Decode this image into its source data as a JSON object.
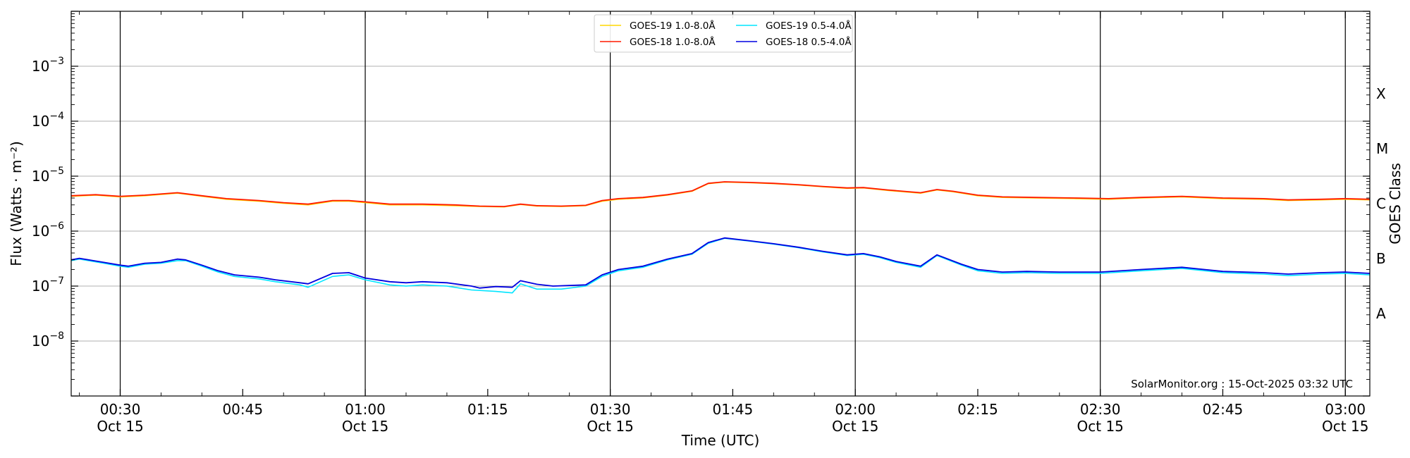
{
  "chart_data": {
    "type": "line",
    "title": "",
    "xlabel": "Time (UTC)",
    "ylabel": "Flux (Watts · m⁻²)",
    "right_ylabel": "GOES Class",
    "yscale": "log",
    "ylim": [
      1e-09,
      0.01
    ],
    "xlim_minutes": [
      "00:24",
      "03:03"
    ],
    "grid": "horizontal",
    "y_ticks": [
      {
        "base": "10",
        "exp": "−8",
        "value": 1e-08
      },
      {
        "base": "10",
        "exp": "−7",
        "value": 1e-07
      },
      {
        "base": "10",
        "exp": "−6",
        "value": 1e-06
      },
      {
        "base": "10",
        "exp": "−5",
        "value": 1e-05
      },
      {
        "base": "10",
        "exp": "−4",
        "value": 0.0001
      },
      {
        "base": "10",
        "exp": "−3",
        "value": 0.001
      }
    ],
    "x_ticks": [
      {
        "time": "00:30",
        "label": "00:30",
        "sub": "Oct 15"
      },
      {
        "time": "00:45",
        "label": "00:45",
        "sub": ""
      },
      {
        "time": "01:00",
        "label": "01:00",
        "sub": "Oct 15"
      },
      {
        "time": "01:15",
        "label": "01:15",
        "sub": ""
      },
      {
        "time": "01:30",
        "label": "01:30",
        "sub": "Oct 15"
      },
      {
        "time": "01:45",
        "label": "01:45",
        "sub": ""
      },
      {
        "time": "02:00",
        "label": "02:00",
        "sub": "Oct 15"
      },
      {
        "time": "02:15",
        "label": "02:15",
        "sub": ""
      },
      {
        "time": "02:30",
        "label": "02:30",
        "sub": "Oct 15"
      },
      {
        "time": "02:45",
        "label": "02:45",
        "sub": ""
      },
      {
        "time": "03:00",
        "label": "03:00",
        "sub": "Oct 15"
      }
    ],
    "vlines": [
      "00:30",
      "01:00",
      "01:30",
      "02:00",
      "02:30",
      "03:00"
    ],
    "goes_classes": [
      {
        "label": "A",
        "value": 3.16e-08
      },
      {
        "label": "B",
        "value": 3.16e-07
      },
      {
        "label": "C",
        "value": 3.16e-06
      },
      {
        "label": "M",
        "value": 3.16e-05
      },
      {
        "label": "X",
        "value": 0.000316
      }
    ],
    "legend_placement": "top-center",
    "credit": "SolarMonitor.org : 15-Oct-2025 03:32 UTC",
    "series": [
      {
        "name": "GOES-19 1.0-8.0Å",
        "color": "#ffd700",
        "points": [
          [
            "00:24",
            4.3e-06
          ],
          [
            "00:27",
            4.5e-06
          ],
          [
            "00:30",
            4.2e-06
          ],
          [
            "00:33",
            4.4e-06
          ],
          [
            "00:37",
            4.9e-06
          ],
          [
            "00:40",
            4.3e-06
          ],
          [
            "00:43",
            3.8e-06
          ],
          [
            "00:47",
            3.5e-06
          ],
          [
            "00:50",
            3.2e-06
          ],
          [
            "00:53",
            3e-06
          ],
          [
            "00:56",
            3.5e-06
          ],
          [
            "00:58",
            3.5e-06
          ],
          [
            "01:00",
            3.3e-06
          ],
          [
            "01:03",
            3e-06
          ],
          [
            "01:07",
            3e-06
          ],
          [
            "01:11",
            2.9e-06
          ],
          [
            "01:14",
            2.8e-06
          ],
          [
            "01:17",
            2.75e-06
          ],
          [
            "01:19",
            3.05e-06
          ],
          [
            "01:21",
            2.85e-06
          ],
          [
            "01:24",
            2.8e-06
          ],
          [
            "01:27",
            2.9e-06
          ],
          [
            "01:29",
            3.5e-06
          ],
          [
            "01:31",
            3.8e-06
          ],
          [
            "01:34",
            4e-06
          ],
          [
            "01:37",
            4.5e-06
          ],
          [
            "01:40",
            5.3e-06
          ],
          [
            "01:42",
            7.3e-06
          ],
          [
            "01:44",
            7.8e-06
          ],
          [
            "01:47",
            7.6e-06
          ],
          [
            "01:50",
            7.3e-06
          ],
          [
            "01:53",
            6.9e-06
          ],
          [
            "01:56",
            6.4e-06
          ],
          [
            "01:59",
            6e-06
          ],
          [
            "02:01",
            6.1e-06
          ],
          [
            "02:04",
            5.5e-06
          ],
          [
            "02:08",
            4.9e-06
          ],
          [
            "02:10",
            5.6e-06
          ],
          [
            "02:12",
            5.2e-06
          ],
          [
            "02:15",
            4.4e-06
          ],
          [
            "02:18",
            4.1e-06
          ],
          [
            "02:22",
            4e-06
          ],
          [
            "02:27",
            3.9e-06
          ],
          [
            "02:31",
            3.8e-06
          ],
          [
            "02:35",
            4e-06
          ],
          [
            "02:40",
            4.2e-06
          ],
          [
            "02:45",
            3.9e-06
          ],
          [
            "02:50",
            3.8e-06
          ],
          [
            "02:53",
            3.6e-06
          ],
          [
            "02:57",
            3.7e-06
          ],
          [
            "03:00",
            3.8e-06
          ],
          [
            "03:03",
            3.7e-06
          ]
        ]
      },
      {
        "name": "GOES-18 1.0-8.0Å",
        "color": "#ff1a00",
        "points": [
          [
            "00:24",
            4.4e-06
          ],
          [
            "00:27",
            4.6e-06
          ],
          [
            "00:30",
            4.3e-06
          ],
          [
            "00:33",
            4.5e-06
          ],
          [
            "00:37",
            5e-06
          ],
          [
            "00:40",
            4.4e-06
          ],
          [
            "00:43",
            3.9e-06
          ],
          [
            "00:47",
            3.6e-06
          ],
          [
            "00:50",
            3.3e-06
          ],
          [
            "00:53",
            3.1e-06
          ],
          [
            "00:56",
            3.6e-06
          ],
          [
            "00:58",
            3.6e-06
          ],
          [
            "01:00",
            3.4e-06
          ],
          [
            "01:03",
            3.1e-06
          ],
          [
            "01:07",
            3.1e-06
          ],
          [
            "01:11",
            3e-06
          ],
          [
            "01:14",
            2.85e-06
          ],
          [
            "01:17",
            2.8e-06
          ],
          [
            "01:19",
            3.1e-06
          ],
          [
            "01:21",
            2.9e-06
          ],
          [
            "01:24",
            2.85e-06
          ],
          [
            "01:27",
            2.95e-06
          ],
          [
            "01:29",
            3.6e-06
          ],
          [
            "01:31",
            3.9e-06
          ],
          [
            "01:34",
            4.1e-06
          ],
          [
            "01:37",
            4.6e-06
          ],
          [
            "01:40",
            5.4e-06
          ],
          [
            "01:42",
            7.4e-06
          ],
          [
            "01:44",
            7.9e-06
          ],
          [
            "01:47",
            7.7e-06
          ],
          [
            "01:50",
            7.4e-06
          ],
          [
            "01:53",
            7e-06
          ],
          [
            "01:56",
            6.5e-06
          ],
          [
            "01:59",
            6.1e-06
          ],
          [
            "02:01",
            6.2e-06
          ],
          [
            "02:04",
            5.6e-06
          ],
          [
            "02:08",
            5e-06
          ],
          [
            "02:10",
            5.7e-06
          ],
          [
            "02:12",
            5.3e-06
          ],
          [
            "02:15",
            4.5e-06
          ],
          [
            "02:18",
            4.2e-06
          ],
          [
            "02:22",
            4.1e-06
          ],
          [
            "02:27",
            4e-06
          ],
          [
            "02:31",
            3.9e-06
          ],
          [
            "02:35",
            4.1e-06
          ],
          [
            "02:40",
            4.3e-06
          ],
          [
            "02:45",
            4e-06
          ],
          [
            "02:50",
            3.9e-06
          ],
          [
            "02:53",
            3.7e-06
          ],
          [
            "02:57",
            3.8e-06
          ],
          [
            "03:00",
            3.9e-06
          ],
          [
            "03:03",
            3.8e-06
          ]
        ]
      },
      {
        "name": "GOES-19 0.5-4.0Å",
        "color": "#00e5ff",
        "points": [
          [
            "00:24",
            2.9e-07
          ],
          [
            "00:25",
            3.1e-07
          ],
          [
            "00:28",
            2.6e-07
          ],
          [
            "00:30",
            2.3e-07
          ],
          [
            "00:31",
            2.2e-07
          ],
          [
            "00:33",
            2.5e-07
          ],
          [
            "00:35",
            2.6e-07
          ],
          [
            "00:37",
            2.9e-07
          ],
          [
            "00:38",
            2.9e-07
          ],
          [
            "00:40",
            2.3e-07
          ],
          [
            "00:42",
            1.8e-07
          ],
          [
            "00:44",
            1.5e-07
          ],
          [
            "00:47",
            1.35e-07
          ],
          [
            "00:49",
            1.2e-07
          ],
          [
            "00:52",
            1.05e-07
          ],
          [
            "00:53",
            9.5e-08
          ],
          [
            "00:56",
            1.5e-07
          ],
          [
            "00:58",
            1.6e-07
          ],
          [
            "01:00",
            1.3e-07
          ],
          [
            "01:03",
            1.05e-07
          ],
          [
            "01:05",
            1e-07
          ],
          [
            "01:07",
            1.05e-07
          ],
          [
            "01:10",
            1e-07
          ],
          [
            "01:13",
            8.5e-08
          ],
          [
            "01:16",
            8e-08
          ],
          [
            "01:18",
            7.5e-08
          ],
          [
            "01:19",
            1.1e-07
          ],
          [
            "01:21",
            8.8e-08
          ],
          [
            "01:24",
            8.8e-08
          ],
          [
            "01:27",
            1e-07
          ],
          [
            "01:29",
            1.5e-07
          ],
          [
            "01:31",
            1.9e-07
          ],
          [
            "01:34",
            2.2e-07
          ],
          [
            "01:37",
            3e-07
          ],
          [
            "01:40",
            3.8e-07
          ],
          [
            "01:42",
            6e-07
          ],
          [
            "01:44",
            7.4e-07
          ],
          [
            "01:47",
            6.6e-07
          ],
          [
            "01:50",
            5.8e-07
          ],
          [
            "01:53",
            5e-07
          ],
          [
            "01:56",
            4.2e-07
          ],
          [
            "01:59",
            3.6e-07
          ],
          [
            "02:01",
            3.8e-07
          ],
          [
            "02:03",
            3.3e-07
          ],
          [
            "02:05",
            2.7e-07
          ],
          [
            "02:08",
            2.2e-07
          ],
          [
            "02:10",
            3.6e-07
          ],
          [
            "02:13",
            2.4e-07
          ],
          [
            "02:15",
            1.9e-07
          ],
          [
            "02:18",
            1.7e-07
          ],
          [
            "02:21",
            1.75e-07
          ],
          [
            "02:25",
            1.7e-07
          ],
          [
            "02:30",
            1.7e-07
          ],
          [
            "02:35",
            1.9e-07
          ],
          [
            "02:40",
            2.1e-07
          ],
          [
            "02:45",
            1.75e-07
          ],
          [
            "02:50",
            1.65e-07
          ],
          [
            "02:53",
            1.55e-07
          ],
          [
            "02:57",
            1.65e-07
          ],
          [
            "03:00",
            1.7e-07
          ],
          [
            "03:03",
            1.6e-07
          ]
        ]
      },
      {
        "name": "GOES-18 0.5-4.0Å",
        "color": "#0000e0",
        "points": [
          [
            "00:24",
            3e-07
          ],
          [
            "00:25",
            3.2e-07
          ],
          [
            "00:28",
            2.7e-07
          ],
          [
            "00:30",
            2.4e-07
          ],
          [
            "00:31",
            2.3e-07
          ],
          [
            "00:33",
            2.6e-07
          ],
          [
            "00:35",
            2.7e-07
          ],
          [
            "00:37",
            3.1e-07
          ],
          [
            "00:38",
            3e-07
          ],
          [
            "00:40",
            2.4e-07
          ],
          [
            "00:42",
            1.9e-07
          ],
          [
            "00:44",
            1.6e-07
          ],
          [
            "00:47",
            1.45e-07
          ],
          [
            "00:49",
            1.3e-07
          ],
          [
            "00:52",
            1.15e-07
          ],
          [
            "00:53",
            1.1e-07
          ],
          [
            "00:56",
            1.7e-07
          ],
          [
            "00:58",
            1.75e-07
          ],
          [
            "01:00",
            1.4e-07
          ],
          [
            "01:03",
            1.2e-07
          ],
          [
            "01:05",
            1.15e-07
          ],
          [
            "01:07",
            1.2e-07
          ],
          [
            "01:10",
            1.15e-07
          ],
          [
            "01:13",
            1e-07
          ],
          [
            "01:14",
            9.2e-08
          ],
          [
            "01:16",
            9.8e-08
          ],
          [
            "01:18",
            9.5e-08
          ],
          [
            "01:19",
            1.25e-07
          ],
          [
            "01:21",
            1.08e-07
          ],
          [
            "01:23",
            1e-07
          ],
          [
            "01:27",
            1.05e-07
          ],
          [
            "01:29",
            1.6e-07
          ],
          [
            "01:31",
            2e-07
          ],
          [
            "01:34",
            2.3e-07
          ],
          [
            "01:37",
            3.1e-07
          ],
          [
            "01:40",
            3.9e-07
          ],
          [
            "01:42",
            6.2e-07
          ],
          [
            "01:44",
            7.5e-07
          ],
          [
            "01:47",
            6.7e-07
          ],
          [
            "01:50",
            5.9e-07
          ],
          [
            "01:53",
            5.1e-07
          ],
          [
            "01:56",
            4.3e-07
          ],
          [
            "01:59",
            3.7e-07
          ],
          [
            "02:01",
            3.9e-07
          ],
          [
            "02:03",
            3.4e-07
          ],
          [
            "02:05",
            2.8e-07
          ],
          [
            "02:08",
            2.3e-07
          ],
          [
            "02:10",
            3.7e-07
          ],
          [
            "02:13",
            2.5e-07
          ],
          [
            "02:15",
            2e-07
          ],
          [
            "02:18",
            1.8e-07
          ],
          [
            "02:21",
            1.85e-07
          ],
          [
            "02:25",
            1.8e-07
          ],
          [
            "02:30",
            1.8e-07
          ],
          [
            "02:35",
            2e-07
          ],
          [
            "02:40",
            2.2e-07
          ],
          [
            "02:45",
            1.85e-07
          ],
          [
            "02:50",
            1.75e-07
          ],
          [
            "02:53",
            1.65e-07
          ],
          [
            "02:57",
            1.75e-07
          ],
          [
            "03:00",
            1.8e-07
          ],
          [
            "03:03",
            1.7e-07
          ]
        ]
      }
    ]
  }
}
